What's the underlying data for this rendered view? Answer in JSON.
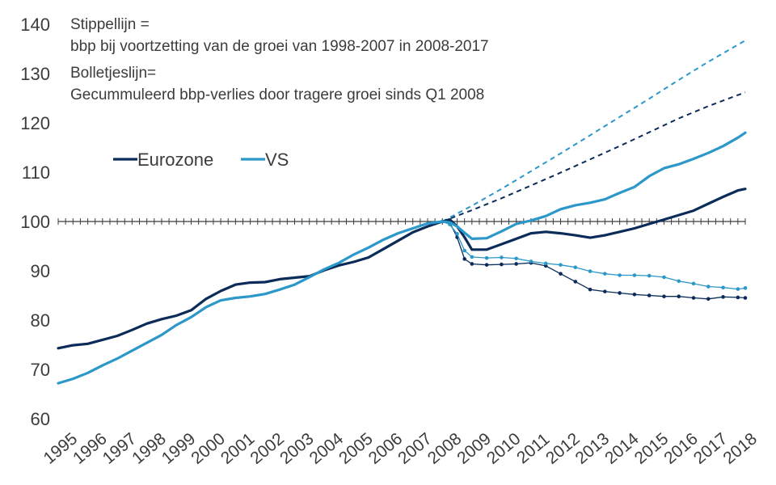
{
  "chart_data": {
    "type": "line",
    "title": "",
    "annotations": [
      "Stippellijn =",
      "bbp bij voortzetting van de groei van 1998-2007 in 2008-2017",
      "Bolletjeslijn=",
      "Gecummuleerd bbp-verlies door tragere groei sinds Q1 2008"
    ],
    "xlabel": "",
    "ylabel": "",
    "ylim": [
      60,
      140
    ],
    "y_ticks": [
      60,
      70,
      80,
      90,
      100,
      110,
      120,
      130,
      140
    ],
    "x_ticks": [
      "1995",
      "1996",
      "1997",
      "1998",
      "1999",
      "2000",
      "2001",
      "2002",
      "2003",
      "2004",
      "2005",
      "2006",
      "2007",
      "2008",
      "2009",
      "2010",
      "2011",
      "2012",
      "2013",
      "2014",
      "2015",
      "2016",
      "2017",
      "2018"
    ],
    "x_range": [
      1995.0,
      2018.25
    ],
    "axis_crossing_y": 100,
    "legend_position": "upper-left",
    "grid": false,
    "colors": {
      "Eurozone": "#0b2c59",
      "VS": "#2b98c9"
    },
    "series": [
      {
        "name": "Eurozone",
        "style": "solid",
        "points": [
          [
            1995.0,
            74.3
          ],
          [
            1995.5,
            74.9
          ],
          [
            1996.0,
            75.2
          ],
          [
            1996.5,
            76.0
          ],
          [
            1997.0,
            76.8
          ],
          [
            1997.5,
            78.0
          ],
          [
            1998.0,
            79.3
          ],
          [
            1998.5,
            80.2
          ],
          [
            1999.0,
            80.9
          ],
          [
            1999.5,
            82.0
          ],
          [
            2000.0,
            84.3
          ],
          [
            2000.5,
            85.9
          ],
          [
            2001.0,
            87.2
          ],
          [
            2001.5,
            87.6
          ],
          [
            2002.0,
            87.7
          ],
          [
            2002.5,
            88.3
          ],
          [
            2003.0,
            88.6
          ],
          [
            2003.5,
            88.9
          ],
          [
            2004.0,
            90.1
          ],
          [
            2004.5,
            91.1
          ],
          [
            2005.0,
            91.8
          ],
          [
            2005.5,
            92.7
          ],
          [
            2006.0,
            94.4
          ],
          [
            2006.5,
            96.1
          ],
          [
            2007.0,
            97.8
          ],
          [
            2007.5,
            99.0
          ],
          [
            2008.0,
            100.0
          ],
          [
            2008.25,
            100.4
          ],
          [
            2008.5,
            99.0
          ],
          [
            2008.75,
            96.8
          ],
          [
            2009.0,
            94.3
          ],
          [
            2009.5,
            94.3
          ],
          [
            2010.0,
            95.4
          ],
          [
            2010.5,
            96.5
          ],
          [
            2011.0,
            97.6
          ],
          [
            2011.5,
            97.9
          ],
          [
            2012.0,
            97.6
          ],
          [
            2012.5,
            97.2
          ],
          [
            2013.0,
            96.7
          ],
          [
            2013.5,
            97.2
          ],
          [
            2014.0,
            97.9
          ],
          [
            2014.5,
            98.6
          ],
          [
            2015.0,
            99.5
          ],
          [
            2015.5,
            100.4
          ],
          [
            2016.0,
            101.3
          ],
          [
            2016.5,
            102.2
          ],
          [
            2017.0,
            103.6
          ],
          [
            2017.5,
            105.0
          ],
          [
            2018.0,
            106.3
          ],
          [
            2018.25,
            106.6
          ]
        ]
      },
      {
        "name": "VS",
        "style": "solid",
        "points": [
          [
            1995.0,
            67.2
          ],
          [
            1995.5,
            68.1
          ],
          [
            1996.0,
            69.3
          ],
          [
            1996.5,
            70.8
          ],
          [
            1997.0,
            72.2
          ],
          [
            1997.5,
            73.8
          ],
          [
            1998.0,
            75.4
          ],
          [
            1998.5,
            77.0
          ],
          [
            1999.0,
            79.0
          ],
          [
            1999.5,
            80.6
          ],
          [
            2000.0,
            82.6
          ],
          [
            2000.5,
            84.0
          ],
          [
            2001.0,
            84.5
          ],
          [
            2001.5,
            84.8
          ],
          [
            2002.0,
            85.3
          ],
          [
            2002.5,
            86.2
          ],
          [
            2003.0,
            87.2
          ],
          [
            2003.5,
            88.7
          ],
          [
            2004.0,
            90.3
          ],
          [
            2004.5,
            91.6
          ],
          [
            2005.0,
            93.3
          ],
          [
            2005.5,
            94.7
          ],
          [
            2006.0,
            96.3
          ],
          [
            2006.5,
            97.6
          ],
          [
            2007.0,
            98.6
          ],
          [
            2007.5,
            99.6
          ],
          [
            2008.0,
            100.0
          ],
          [
            2008.25,
            99.8
          ],
          [
            2008.5,
            99.0
          ],
          [
            2008.75,
            97.7
          ],
          [
            2009.0,
            96.5
          ],
          [
            2009.5,
            96.6
          ],
          [
            2010.0,
            98.0
          ],
          [
            2010.5,
            99.5
          ],
          [
            2011.0,
            100.2
          ],
          [
            2011.5,
            101.1
          ],
          [
            2012.0,
            102.5
          ],
          [
            2012.5,
            103.3
          ],
          [
            2013.0,
            103.8
          ],
          [
            2013.5,
            104.5
          ],
          [
            2014.0,
            105.8
          ],
          [
            2014.5,
            107.0
          ],
          [
            2015.0,
            109.2
          ],
          [
            2015.5,
            110.8
          ],
          [
            2016.0,
            111.6
          ],
          [
            2016.5,
            112.7
          ],
          [
            2017.0,
            113.9
          ],
          [
            2017.5,
            115.3
          ],
          [
            2018.0,
            117.0
          ],
          [
            2018.25,
            118.0
          ]
        ]
      },
      {
        "style": "dashed",
        "color_of": "Eurozone",
        "points": [
          [
            2008.0,
            100.0
          ],
          [
            2009.0,
            102.3
          ],
          [
            2010.0,
            104.7
          ],
          [
            2011.0,
            107.3
          ],
          [
            2012.0,
            109.9
          ],
          [
            2013.0,
            112.6
          ],
          [
            2014.0,
            115.3
          ],
          [
            2015.0,
            118.1
          ],
          [
            2016.0,
            120.9
          ],
          [
            2017.0,
            123.4
          ],
          [
            2018.25,
            126.2
          ]
        ]
      },
      {
        "style": "dashed",
        "color_of": "VS",
        "points": [
          [
            2008.0,
            100.0
          ],
          [
            2009.0,
            103.2
          ],
          [
            2010.0,
            106.6
          ],
          [
            2011.0,
            110.2
          ],
          [
            2012.0,
            113.8
          ],
          [
            2013.0,
            117.5
          ],
          [
            2014.0,
            121.2
          ],
          [
            2015.0,
            124.9
          ],
          [
            2016.0,
            128.7
          ],
          [
            2017.0,
            132.4
          ],
          [
            2018.25,
            136.7
          ]
        ]
      },
      {
        "style": "dotted-markers",
        "color_of": "Eurozone",
        "points": [
          [
            2008.0,
            100.0
          ],
          [
            2008.25,
            99.8
          ],
          [
            2008.5,
            96.8
          ],
          [
            2008.75,
            92.4
          ],
          [
            2009.0,
            91.4
          ],
          [
            2009.5,
            91.2
          ],
          [
            2010.0,
            91.3
          ],
          [
            2010.5,
            91.4
          ],
          [
            2011.0,
            91.6
          ],
          [
            2011.5,
            91.0
          ],
          [
            2012.0,
            89.4
          ],
          [
            2012.5,
            87.8
          ],
          [
            2013.0,
            86.2
          ],
          [
            2013.5,
            85.8
          ],
          [
            2014.0,
            85.5
          ],
          [
            2014.5,
            85.2
          ],
          [
            2015.0,
            85.0
          ],
          [
            2015.5,
            84.8
          ],
          [
            2016.0,
            84.8
          ],
          [
            2016.5,
            84.5
          ],
          [
            2017.0,
            84.3
          ],
          [
            2017.5,
            84.7
          ],
          [
            2018.0,
            84.6
          ],
          [
            2018.25,
            84.5
          ]
        ]
      },
      {
        "style": "dotted-markers",
        "color_of": "VS",
        "points": [
          [
            2008.0,
            100.0
          ],
          [
            2008.25,
            99.4
          ],
          [
            2008.5,
            97.5
          ],
          [
            2008.75,
            94.1
          ],
          [
            2009.0,
            92.8
          ],
          [
            2009.5,
            92.6
          ],
          [
            2010.0,
            92.7
          ],
          [
            2010.5,
            92.5
          ],
          [
            2011.0,
            91.9
          ],
          [
            2011.5,
            91.5
          ],
          [
            2012.0,
            91.2
          ],
          [
            2012.5,
            90.7
          ],
          [
            2013.0,
            89.9
          ],
          [
            2013.5,
            89.4
          ],
          [
            2014.0,
            89.1
          ],
          [
            2014.5,
            89.1
          ],
          [
            2015.0,
            89.0
          ],
          [
            2015.5,
            88.7
          ],
          [
            2016.0,
            87.9
          ],
          [
            2016.5,
            87.4
          ],
          [
            2017.0,
            86.8
          ],
          [
            2017.5,
            86.6
          ],
          [
            2018.0,
            86.3
          ],
          [
            2018.25,
            86.5
          ]
        ]
      }
    ]
  }
}
